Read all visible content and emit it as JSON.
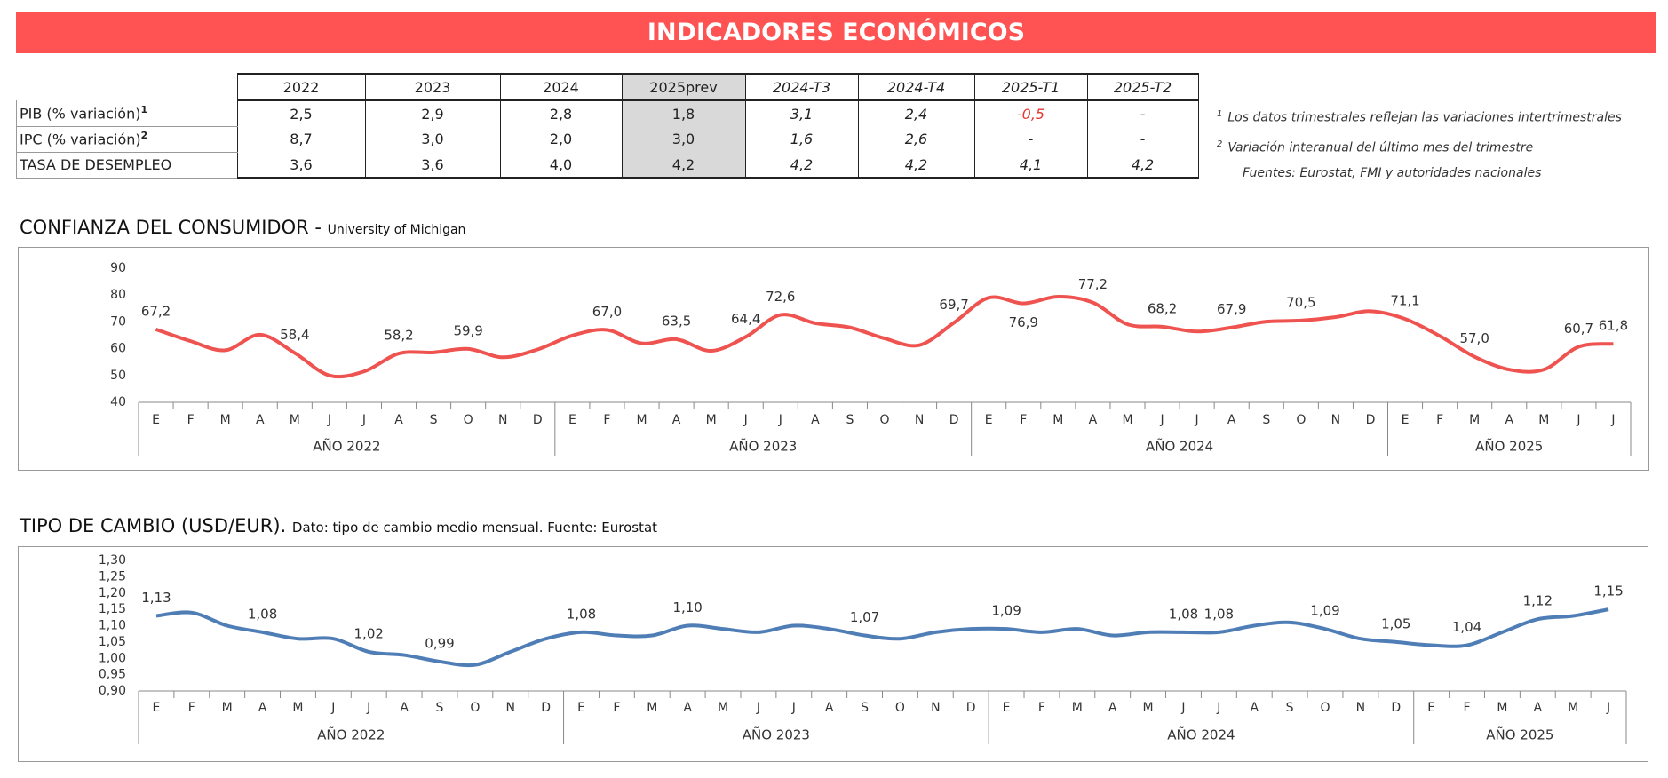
{
  "header": {
    "title": "INDICADORES ECONÓMICOS"
  },
  "table": {
    "columns": [
      "2022",
      "2023",
      "2024",
      "2025prev",
      "2024-T3",
      "2024-T4",
      "2025-T1",
      "2025-T2"
    ],
    "rows": [
      {
        "label": "PIB (% variación)",
        "sup": "1",
        "values": [
          "2,5",
          "2,9",
          "2,8",
          "1,8",
          "3,1",
          "2,4",
          "-0,5",
          "-"
        ]
      },
      {
        "label": "IPC (% variación)",
        "sup": "2",
        "values": [
          "8,7",
          "3,0",
          "2,0",
          "3,0",
          "1,6",
          "2,6",
          "-",
          "-"
        ]
      },
      {
        "label": "TASA DE DESEMPLEO",
        "values": [
          "3,6",
          "3,6",
          "4,0",
          "4,2",
          "4,2",
          "4,2",
          "4,1",
          "4,2"
        ]
      }
    ]
  },
  "notes": [
    {
      "sup": "1",
      "text": "Los datos trimestrales reflejan las variaciones intertrimestrales"
    },
    {
      "sup": "2",
      "text": "Variación interanual del último mes del trimestre"
    }
  ],
  "source": "Fuentes: Eurostat, FMI y autoridades nacionales",
  "chart_data": [
    {
      "type": "line",
      "title": "CONFIANZA DEL CONSUMIDOR -",
      "subtitle": "University of Michigan",
      "color": "#ef5350",
      "groups": [
        {
          "label": "AÑO 2022",
          "categories": [
            "E",
            "F",
            "M",
            "A",
            "M",
            "J",
            "J",
            "A",
            "S",
            "O",
            "N",
            "D"
          ]
        },
        {
          "label": "AÑO 2023",
          "categories": [
            "E",
            "F",
            "M",
            "A",
            "M",
            "J",
            "J",
            "A",
            "S",
            "O",
            "N",
            "D"
          ]
        },
        {
          "label": "AÑO 2024",
          "categories": [
            "E",
            "F",
            "M",
            "A",
            "M",
            "J",
            "J",
            "A",
            "S",
            "O",
            "N",
            "D"
          ]
        },
        {
          "label": "AÑO 2025",
          "categories": [
            "E",
            "F",
            "M",
            "A",
            "M",
            "J",
            "J"
          ]
        }
      ],
      "values": [
        67.2,
        62.8,
        59.4,
        65.2,
        58.4,
        50.0,
        51.5,
        58.2,
        58.6,
        59.9,
        56.8,
        59.7,
        64.9,
        67.0,
        62.0,
        63.5,
        59.2,
        64.4,
        72.6,
        69.5,
        67.9,
        63.8,
        61.3,
        69.7,
        79.0,
        76.9,
        79.4,
        77.2,
        69.1,
        68.2,
        66.4,
        67.9,
        70.1,
        70.5,
        71.8,
        74.0,
        71.1,
        64.7,
        57.0,
        52.2,
        52.2,
        60.7,
        61.8
      ],
      "value_labels": [
        "67,2",
        null,
        null,
        null,
        "58,4",
        null,
        null,
        "58,2",
        null,
        "59,9",
        null,
        null,
        null,
        "67,0",
        null,
        "63,5",
        null,
        "64,4",
        "72,6",
        null,
        null,
        null,
        null,
        "69,7",
        null,
        "76,9",
        null,
        "77,2",
        null,
        "68,2",
        null,
        "67,9",
        null,
        "70,5",
        null,
        null,
        "71,1",
        null,
        "57,0",
        null,
        null,
        "60,7",
        "61,8"
      ],
      "ylim": [
        40,
        90
      ],
      "yticks": [
        40,
        50,
        60,
        70,
        80,
        90
      ],
      "grid": false
    },
    {
      "type": "line",
      "title": "TIPO DE CAMBIO (USD/EUR).",
      "subtitle": "Dato: tipo de cambio medio mensual. Fuente: Eurostat",
      "color": "#4f7db5",
      "groups": [
        {
          "label": "AÑO 2022",
          "categories": [
            "E",
            "F",
            "M",
            "A",
            "M",
            "J",
            "J",
            "A",
            "S",
            "O",
            "N",
            "D"
          ]
        },
        {
          "label": "AÑO 2023",
          "categories": [
            "E",
            "F",
            "M",
            "A",
            "M",
            "J",
            "J",
            "A",
            "S",
            "O",
            "N",
            "D"
          ]
        },
        {
          "label": "AÑO 2024",
          "categories": [
            "E",
            "F",
            "M",
            "A",
            "M",
            "J",
            "J",
            "A",
            "S",
            "O",
            "N",
            "D"
          ]
        },
        {
          "label": "AÑO 2025",
          "categories": [
            "E",
            "F",
            "M",
            "A",
            "M",
            "J"
          ]
        }
      ],
      "values": [
        1.13,
        1.14,
        1.1,
        1.08,
        1.06,
        1.06,
        1.02,
        1.01,
        0.99,
        0.98,
        1.02,
        1.06,
        1.08,
        1.07,
        1.07,
        1.1,
        1.09,
        1.08,
        1.1,
        1.09,
        1.07,
        1.06,
        1.08,
        1.09,
        1.09,
        1.08,
        1.09,
        1.07,
        1.08,
        1.08,
        1.08,
        1.1,
        1.11,
        1.09,
        1.06,
        1.05,
        1.04,
        1.04,
        1.08,
        1.12,
        1.13,
        1.15
      ],
      "value_labels": [
        "1,13",
        null,
        null,
        "1,08",
        null,
        null,
        "1,02",
        null,
        "0,99",
        null,
        null,
        null,
        "1,08",
        null,
        null,
        "1,10",
        null,
        null,
        null,
        null,
        "1,07",
        null,
        null,
        null,
        "1,09",
        null,
        null,
        null,
        null,
        "1,08",
        "1,08",
        null,
        null,
        "1,09",
        null,
        "1,05",
        null,
        "1,04",
        null,
        "1,12",
        null,
        "1,15"
      ],
      "ylim": [
        0.9,
        1.3
      ],
      "yticks": [
        {
          "value": 0.9,
          "label": "0,90"
        },
        {
          "value": 0.95,
          "label": "0,95"
        },
        {
          "value": 1.0,
          "label": "1,00"
        },
        {
          "value": 1.05,
          "label": "1,05"
        },
        {
          "value": 1.1,
          "label": "1,10"
        },
        {
          "value": 1.15,
          "label": "1,15"
        },
        {
          "value": 1.2,
          "label": "1,20"
        },
        {
          "value": 1.25,
          "label": "1,25"
        },
        {
          "value": 1.3,
          "label": "1,30"
        }
      ],
      "grid": false
    }
  ]
}
